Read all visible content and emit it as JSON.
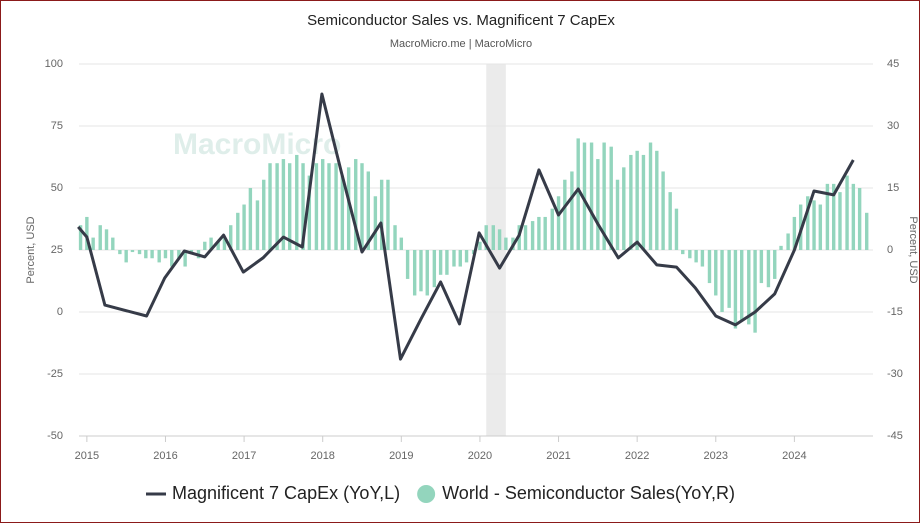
{
  "chart_data": {
    "type": "line-bar",
    "title": "Semiconductor Sales vs. Magnificent 7 CapEx",
    "subtitle": "MacroMicro.me | MacroMicro",
    "watermark": "MacroMicro",
    "ylabel": "Percent, USD",
    "y2label": "Percent, USD",
    "xlim": [
      2014.9,
      2025
    ],
    "xticks": [
      2015,
      2016,
      2017,
      2018,
      2019,
      2020,
      2021,
      2022,
      2023,
      2024
    ],
    "ylim": [
      -50,
      100
    ],
    "yticks": [
      -50,
      -25,
      0,
      25,
      50,
      75,
      100
    ],
    "y2lim": [
      -45,
      45
    ],
    "y2ticks": [
      -45,
      -30,
      -15,
      0,
      15,
      30,
      45
    ],
    "grid": true,
    "shade": [
      2020.08,
      2020.33
    ],
    "series": [
      {
        "name": "Magnificent 7 CapEx (YoY,L)",
        "color": "#363b48",
        "kind": "line",
        "axis": "y",
        "x": [
          2014.89,
          2015.0,
          2015.23,
          2015.76,
          2015.99,
          2016.24,
          2016.5,
          2016.74,
          2016.99,
          2017.24,
          2017.5,
          2017.74,
          2017.99,
          2018.24,
          2018.5,
          2018.74,
          2018.99,
          2019.25,
          2019.5,
          2019.74,
          2019.99,
          2020.25,
          2020.5,
          2020.75,
          2021.0,
          2021.25,
          2021.5,
          2021.76,
          2022.0,
          2022.25,
          2022.5,
          2022.74,
          2023.0,
          2023.25,
          2023.5,
          2023.75,
          2024.0,
          2024.25,
          2024.5,
          2024.75
        ],
        "values": [
          34.3,
          30.2,
          2.8,
          -1.6,
          13.7,
          24.6,
          22.2,
          31.0,
          16.1,
          21.8,
          30.2,
          26.2,
          87.9,
          56.0,
          24.2,
          35.9,
          -19.0,
          -2.8,
          12.1,
          -4.8,
          31.9,
          17.7,
          31.0,
          57.3,
          39.1,
          49.6,
          35.5,
          21.8,
          28.2,
          19.0,
          18.1,
          9.7,
          -1.6,
          -5.2,
          0,
          7.3,
          25.0,
          48.8,
          47.2,
          61.3
        ]
      },
      {
        "name": "World - Semiconductor Sales(YoY,R)",
        "color": "#93d5bd",
        "kind": "bar",
        "axis": "y2",
        "x": [
          2014.92,
          2015.0,
          2015.08,
          2015.17,
          2015.25,
          2015.33,
          2015.42,
          2015.5,
          2015.58,
          2015.67,
          2015.75,
          2015.83,
          2015.92,
          2016.0,
          2016.08,
          2016.17,
          2016.25,
          2016.33,
          2016.42,
          2016.5,
          2016.58,
          2016.67,
          2016.75,
          2016.83,
          2016.92,
          2017.0,
          2017.08,
          2017.17,
          2017.25,
          2017.33,
          2017.42,
          2017.5,
          2017.58,
          2017.67,
          2017.75,
          2017.83,
          2017.92,
          2018.0,
          2018.08,
          2018.17,
          2018.25,
          2018.33,
          2018.42,
          2018.5,
          2018.58,
          2018.67,
          2018.75,
          2018.83,
          2018.92,
          2019.0,
          2019.08,
          2019.17,
          2019.25,
          2019.33,
          2019.42,
          2019.5,
          2019.58,
          2019.67,
          2019.75,
          2019.83,
          2019.92,
          2020.0,
          2020.08,
          2020.17,
          2020.25,
          2020.33,
          2020.42,
          2020.5,
          2020.58,
          2020.67,
          2020.75,
          2020.83,
          2020.92,
          2021.0,
          2021.08,
          2021.17,
          2021.25,
          2021.33,
          2021.42,
          2021.5,
          2021.58,
          2021.67,
          2021.75,
          2021.83,
          2021.92,
          2022.0,
          2022.08,
          2022.17,
          2022.25,
          2022.33,
          2022.42,
          2022.5,
          2022.58,
          2022.67,
          2022.75,
          2022.83,
          2022.92,
          2023.0,
          2023.08,
          2023.17,
          2023.25,
          2023.33,
          2023.42,
          2023.5,
          2023.58,
          2023.67,
          2023.75,
          2023.83,
          2023.92,
          2024.0,
          2024.08,
          2024.17,
          2024.25,
          2024.33,
          2024.42,
          2024.5,
          2024.58,
          2024.67,
          2024.75,
          2024.83,
          2024.92
        ],
        "values": [
          6,
          8,
          3,
          6,
          5,
          3,
          -1,
          -3,
          -0.5,
          -1,
          -2,
          -2,
          -3,
          -2,
          -4,
          -2,
          -4,
          -1,
          -2,
          2,
          3,
          2,
          3,
          6,
          9,
          11,
          15,
          12,
          17,
          21,
          21,
          22,
          21,
          23,
          21,
          18,
          21,
          22,
          21,
          21,
          18,
          20,
          22,
          21,
          19,
          13,
          17,
          17,
          6,
          3,
          -7,
          -11,
          -10,
          -11,
          -9,
          -6,
          -6,
          -4,
          -4,
          -3,
          -1,
          2,
          6,
          6,
          5,
          3,
          3,
          6,
          6,
          7,
          8,
          8,
          10,
          13,
          17,
          19,
          27,
          26,
          26,
          22,
          26,
          25,
          17,
          20,
          23,
          24,
          23,
          26,
          24,
          19,
          14,
          10,
          -1,
          -2,
          -3,
          -4,
          -8,
          -11,
          -15,
          -14,
          -19,
          -17,
          -18,
          -20,
          -8,
          -9,
          -7,
          1,
          4,
          8,
          11,
          13,
          12,
          11,
          16,
          16,
          14,
          18,
          16,
          15,
          9
        ]
      }
    ]
  }
}
